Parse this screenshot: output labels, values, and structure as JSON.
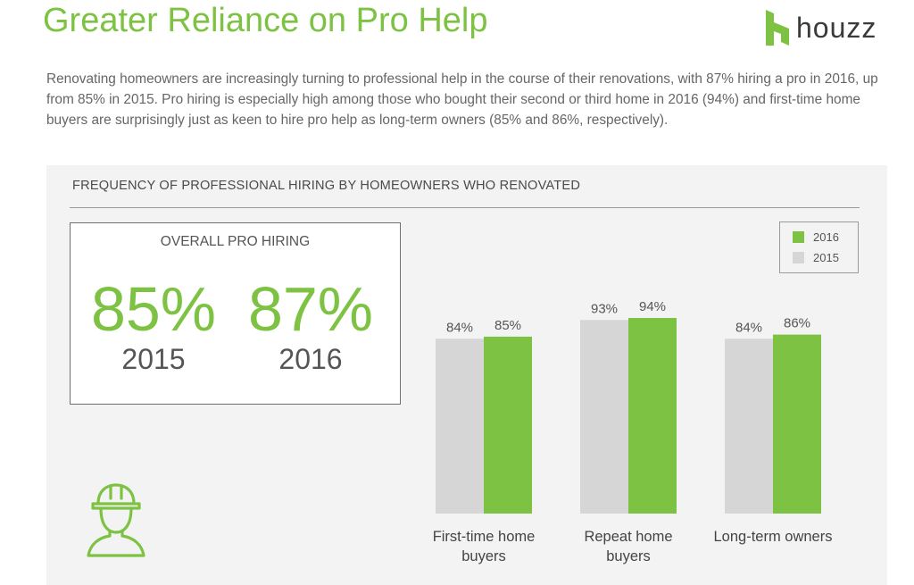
{
  "header": {
    "title": "Greater Reliance on Pro Help",
    "logo_text": "houzz"
  },
  "intro": "Renovating homeowners are increasingly turning to professional help in the course of their renovations, with 87% hiring a pro in 2016, up from 85% in 2015. Pro hiring is especially high among those who bought their second or third home in 2016 (94%) and first-time home buyers are surprisingly just as keen to hire pro help as long-term owners (85% and 86%, respectively).",
  "overall": {
    "label": "OVERALL PRO HIRING",
    "stats": [
      {
        "value": "85%",
        "year": "2015"
      },
      {
        "value": "87%",
        "year": "2016"
      }
    ]
  },
  "colors": {
    "accent": "#7dc242",
    "series_2015": "#d6d6d6",
    "series_2016": "#7dc242"
  },
  "icons": [
    "houzz-logo-icon",
    "construction-worker-icon"
  ],
  "chart_data": {
    "type": "bar",
    "title": "FREQUENCY OF PROFESSIONAL HIRING BY HOMEOWNERS WHO RENOVATED",
    "categories": [
      "First-time home buyers",
      "Repeat home buyers",
      "Long-term owners"
    ],
    "category_lines": [
      [
        "First-time home",
        "buyers"
      ],
      [
        "Repeat home",
        "buyers"
      ],
      [
        "Long-term owners"
      ]
    ],
    "series": [
      {
        "name": "2015",
        "color": "#d6d6d6",
        "values": [
          84,
          93,
          84
        ],
        "labels": [
          "84%",
          "93%",
          "84%"
        ]
      },
      {
        "name": "2016",
        "color": "#7dc242",
        "values": [
          85,
          94,
          86
        ],
        "labels": [
          "85%",
          "94%",
          "86%"
        ]
      }
    ],
    "legend_order": [
      "2016",
      "2015"
    ],
    "legend_position": "top-right",
    "ylim": [
      0,
      100
    ],
    "grid": false,
    "xlabel": "",
    "ylabel": ""
  }
}
